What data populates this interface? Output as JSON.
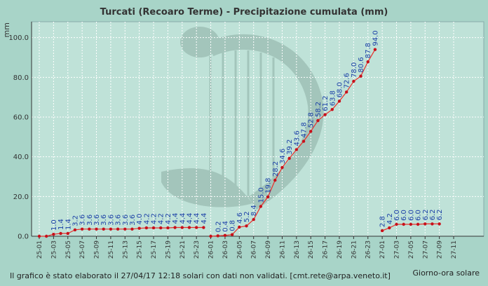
{
  "chart_data": {
    "type": "line",
    "title": "Turcati (Recoaro Terme) - Precipitazione cumulata (mm)",
    "ylabel": "mm",
    "xlabel": "Giorno-ora solare",
    "ylim": [
      0,
      108
    ],
    "yticks": [
      "0.0",
      "20.0",
      "40.0",
      "60.0",
      "80.0",
      "100.0"
    ],
    "xticks": [
      "25-01",
      "25-03",
      "25-05",
      "25-07",
      "25-09",
      "25-11",
      "25-13",
      "25-15",
      "25-17",
      "25-19",
      "25-21",
      "25-23",
      "26-01",
      "26-03",
      "26-05",
      "26-07",
      "26-09",
      "26-11",
      "26-13",
      "26-15",
      "26-17",
      "26-19",
      "26-21",
      "26-23",
      "27-01",
      "27-03",
      "27-05",
      "27-07",
      "27-09",
      "27-11"
    ],
    "grid": true,
    "line_color": "#e8302a",
    "marker_color": "#c8101a",
    "label_color": "#1a3fa6",
    "segments": [
      {
        "x": [
          0,
          1,
          2,
          3,
          4,
          5,
          6,
          7,
          8,
          9,
          10,
          11,
          12,
          13,
          14,
          15,
          16,
          17,
          18,
          19,
          20,
          21,
          22,
          23
        ],
        "values": [
          0.0,
          0.0,
          1.0,
          1.4,
          1.4,
          3.2,
          3.6,
          3.6,
          3.6,
          3.6,
          3.6,
          3.6,
          3.6,
          3.6,
          4.0,
          4.2,
          4.2,
          4.2,
          4.2,
          4.4,
          4.4,
          4.4,
          4.4,
          4.4
        ],
        "labels": [
          "",
          "",
          "1.0",
          "1.4",
          "1.4",
          "3.2",
          "3.6",
          "3.6",
          "3.6",
          "3.6",
          "3.6",
          "3.6",
          "3.6",
          "3.6",
          "4.0",
          "4.2",
          "4.2",
          "4.2",
          "4.2",
          "4.4",
          "4.4",
          "4.4",
          "4.4",
          "4.4"
        ]
      },
      {
        "x": [
          24,
          25,
          26,
          27,
          28,
          29,
          30,
          31,
          32,
          33,
          34,
          35,
          36,
          37,
          38,
          39,
          40,
          41,
          42,
          43,
          44,
          45,
          46,
          47
        ],
        "values": [
          0.0,
          0.2,
          0.4,
          0.8,
          4.6,
          5.2,
          8.4,
          15.0,
          19.8,
          28.2,
          34.6,
          39.2,
          43.6,
          47.8,
          52.8,
          58.2,
          61.2,
          63.8,
          68.0,
          72.6,
          78.0,
          80.6,
          87.8,
          94.0
        ],
        "labels": [
          "",
          "0.2",
          "0.4",
          "0.8",
          "4.6",
          "5.2",
          "8.4",
          "15.0",
          "19.8",
          "28.2",
          "34.6",
          "39.2",
          "43.6",
          "47.8",
          "52.8",
          "58.2",
          "61.2",
          "63.8",
          "68.0",
          "72.6",
          "78.0",
          "80.6",
          "87.8",
          "94.0"
        ]
      },
      {
        "x": [
          48,
          49,
          50,
          51,
          52,
          53,
          54,
          55,
          56
        ],
        "values": [
          2.8,
          4.2,
          6.0,
          6.0,
          6.0,
          6.0,
          6.2,
          6.2,
          6.2
        ],
        "labels": [
          "2.8",
          "4.2",
          "6.0",
          "6.0",
          "6.0",
          "6.0",
          "6.2",
          "6.2",
          "6.2"
        ]
      }
    ]
  },
  "footer": {
    "note": "Il grafico è stato elaborato il 27/04/17 12:18 solari con dati non validati. [cmt.rete@arpa.veneto.it]"
  }
}
